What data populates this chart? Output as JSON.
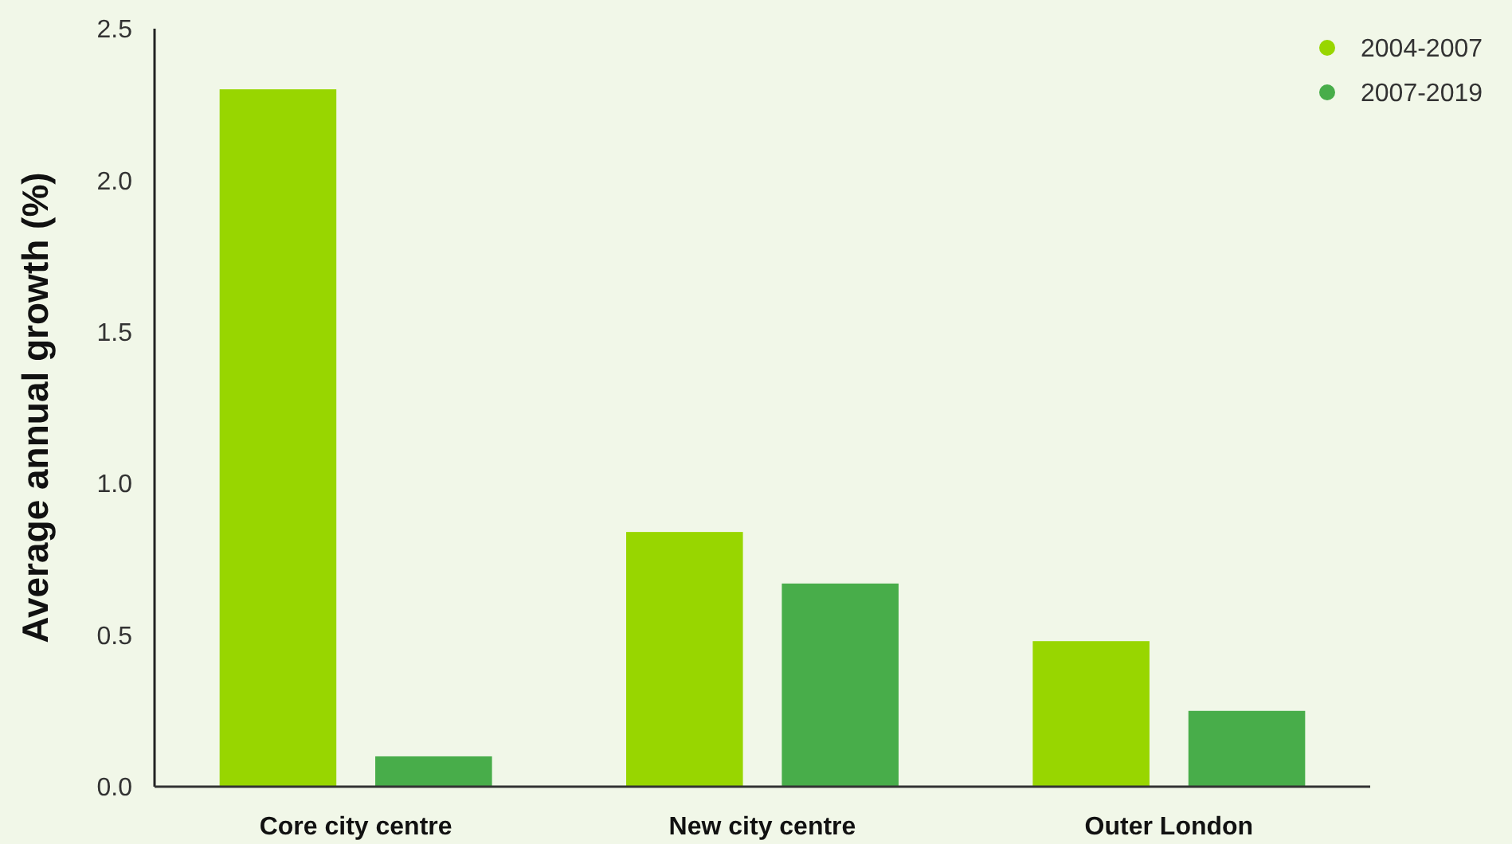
{
  "chart_data": {
    "type": "bar",
    "ylabel": "Average annual growth (%)",
    "categories": [
      "Core city centre",
      "New city centre",
      "Outer London"
    ],
    "series": [
      {
        "name": "2004-2007",
        "color": "#98d600",
        "values": [
          2.3,
          0.84,
          0.48
        ]
      },
      {
        "name": "2007-2019",
        "color": "#48ad4a",
        "values": [
          0.1,
          0.67,
          0.25
        ]
      }
    ],
    "ylim": [
      0,
      2.5
    ],
    "yticks": [
      {
        "value": 0,
        "label": "0.0"
      },
      {
        "value": 0.5,
        "label": "0.5"
      },
      {
        "value": 1,
        "label": "1.0"
      },
      {
        "value": 1.5,
        "label": "1.5"
      },
      {
        "value": 2,
        "label": "2.0"
      },
      {
        "value": 2.5,
        "label": "2.5"
      }
    ],
    "legend": "top right",
    "grid": false
  }
}
